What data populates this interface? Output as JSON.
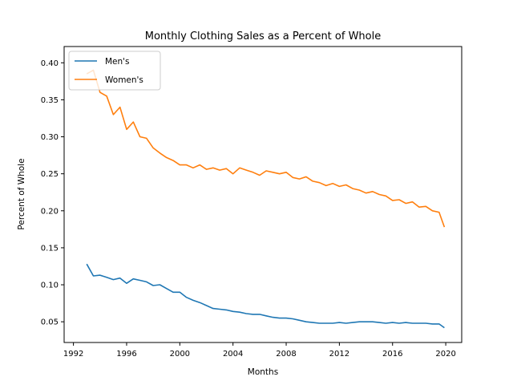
{
  "chart_data": {
    "type": "line",
    "title": "Monthly Clothing Sales as a Percent of Whole",
    "xlabel": "Months",
    "ylabel": "Percent of Whole",
    "xlim": [
      1991.3,
      2021.2
    ],
    "ylim": [
      0.022,
      0.422
    ],
    "xticks": [
      1992,
      1996,
      2000,
      2004,
      2008,
      2012,
      2016,
      2020
    ],
    "yticks": [
      0.05,
      0.1,
      0.15,
      0.2,
      0.25,
      0.3,
      0.35,
      0.4
    ],
    "ytick_labels": [
      "0.05",
      "0.10",
      "0.15",
      "0.20",
      "0.25",
      "0.30",
      "0.35",
      "0.40"
    ],
    "grid": false,
    "legend_position": "upper-left",
    "series": [
      {
        "name": "Men's",
        "color": "#1f77b4",
        "x": [
          1993.0,
          1993.5,
          1994.0,
          1994.5,
          1995.0,
          1995.5,
          1996.0,
          1996.5,
          1997.0,
          1997.5,
          1998.0,
          1998.5,
          1999.0,
          1999.5,
          2000.0,
          2000.5,
          2001.0,
          2001.5,
          2002.0,
          2002.5,
          2003.0,
          2003.5,
          2004.0,
          2004.5,
          2005.0,
          2005.5,
          2006.0,
          2006.5,
          2007.0,
          2007.5,
          2008.0,
          2008.5,
          2009.0,
          2009.5,
          2010.0,
          2010.5,
          2011.0,
          2011.5,
          2012.0,
          2012.5,
          2013.0,
          2013.5,
          2014.0,
          2014.5,
          2015.0,
          2015.5,
          2016.0,
          2016.5,
          2017.0,
          2017.5,
          2018.0,
          2018.5,
          2019.0,
          2019.5,
          2019.9
        ],
        "y": [
          0.128,
          0.112,
          0.113,
          0.11,
          0.107,
          0.109,
          0.102,
          0.108,
          0.106,
          0.104,
          0.099,
          0.1,
          0.095,
          0.09,
          0.09,
          0.083,
          0.079,
          0.076,
          0.072,
          0.068,
          0.067,
          0.066,
          0.064,
          0.063,
          0.061,
          0.06,
          0.06,
          0.058,
          0.056,
          0.055,
          0.055,
          0.054,
          0.052,
          0.05,
          0.049,
          0.048,
          0.048,
          0.048,
          0.049,
          0.048,
          0.049,
          0.05,
          0.05,
          0.05,
          0.049,
          0.048,
          0.049,
          0.048,
          0.049,
          0.048,
          0.048,
          0.048,
          0.047,
          0.047,
          0.042
        ]
      },
      {
        "name": "Women's",
        "color": "#ff7f0e",
        "x": [
          1993.0,
          1993.5,
          1994.0,
          1994.5,
          1995.0,
          1995.5,
          1996.0,
          1996.5,
          1997.0,
          1997.5,
          1998.0,
          1998.5,
          1999.0,
          1999.5,
          2000.0,
          2000.5,
          2001.0,
          2001.5,
          2002.0,
          2002.5,
          2003.0,
          2003.5,
          2004.0,
          2004.5,
          2005.0,
          2005.5,
          2006.0,
          2006.5,
          2007.0,
          2007.5,
          2008.0,
          2008.5,
          2009.0,
          2009.5,
          2010.0,
          2010.5,
          2011.0,
          2011.5,
          2012.0,
          2012.5,
          2013.0,
          2013.5,
          2014.0,
          2014.5,
          2015.0,
          2015.5,
          2016.0,
          2016.5,
          2017.0,
          2017.5,
          2018.0,
          2018.5,
          2019.0,
          2019.5,
          2019.9
        ],
        "y": [
          0.385,
          0.39,
          0.36,
          0.355,
          0.33,
          0.34,
          0.31,
          0.32,
          0.3,
          0.298,
          0.285,
          0.278,
          0.272,
          0.268,
          0.262,
          0.262,
          0.258,
          0.262,
          0.256,
          0.258,
          0.255,
          0.257,
          0.25,
          0.258,
          0.255,
          0.252,
          0.248,
          0.254,
          0.252,
          0.25,
          0.252,
          0.245,
          0.243,
          0.246,
          0.24,
          0.238,
          0.234,
          0.237,
          0.233,
          0.235,
          0.23,
          0.228,
          0.224,
          0.226,
          0.222,
          0.22,
          0.214,
          0.215,
          0.21,
          0.212,
          0.205,
          0.206,
          0.2,
          0.198,
          0.178
        ]
      }
    ]
  }
}
